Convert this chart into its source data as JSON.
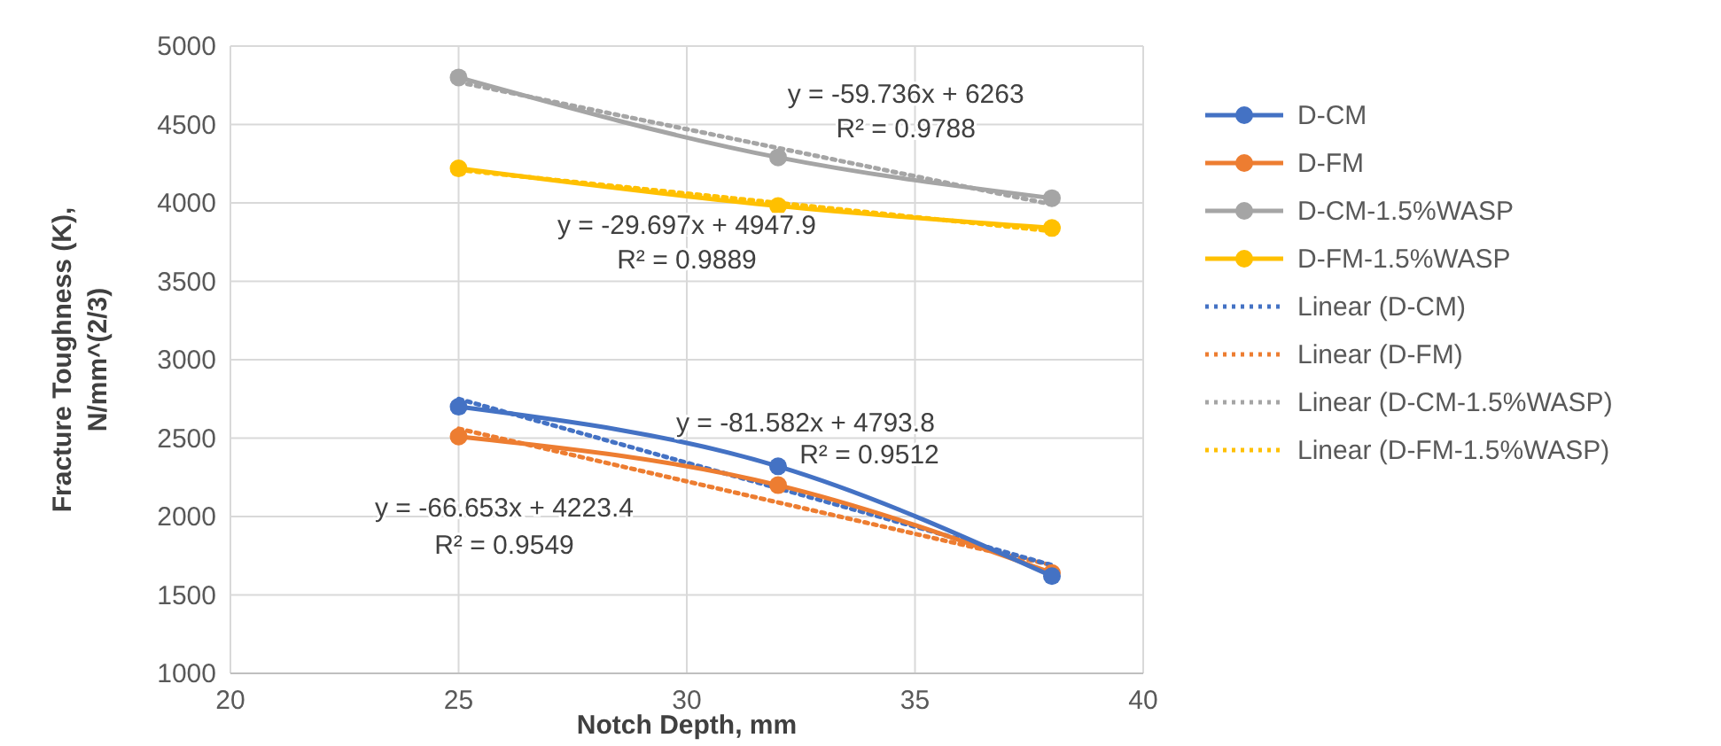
{
  "chart_data": {
    "type": "line",
    "xlabel": "Notch Depth, mm",
    "ylabel": "Fracture Toughness (K), N/mm^(2/3)",
    "x": [
      25,
      32,
      38
    ],
    "xlim": [
      20,
      40
    ],
    "xticks": [
      20,
      25,
      30,
      35,
      40
    ],
    "ylim": [
      1000,
      5000
    ],
    "yticks": [
      1000,
      1500,
      2000,
      2500,
      3000,
      3500,
      4000,
      4500,
      5000
    ],
    "grid": true,
    "legend": "right",
    "marker": "circle",
    "line_style": "solid",
    "series": [
      {
        "name": "D-CM",
        "color": "#4472c4",
        "values": [
          2700,
          2320,
          1620
        ]
      },
      {
        "name": "D-FM",
        "color": "#ed7d31",
        "values": [
          2510,
          2200,
          1640
        ]
      },
      {
        "name": "D-CM-1.5%WASP",
        "color": "#a5a5a5",
        "values": [
          4800,
          4290,
          4030
        ]
      },
      {
        "name": "D-FM-1.5%WASP",
        "color": "#ffc000",
        "values": [
          4220,
          3980,
          3840
        ]
      },
      {
        "name": "Linear (D-CM)",
        "color": "#4472c4",
        "values": [
          2750,
          2180,
          1690
        ],
        "marker": "none",
        "line_style": "dotted"
      },
      {
        "name": "Linear (D-FM)",
        "color": "#ed7d31",
        "values": [
          2560,
          2090,
          1690
        ],
        "marker": "none",
        "line_style": "dotted"
      },
      {
        "name": "Linear (D-CM-1.5%WASP)",
        "color": "#a5a5a5",
        "values": [
          4770,
          4350,
          3990
        ],
        "marker": "none",
        "line_style": "dotted"
      },
      {
        "name": "Linear (D-FM-1.5%WASP)",
        "color": "#ffc000",
        "values": [
          4210,
          4000,
          3820
        ],
        "marker": "none",
        "line_style": "dotted"
      }
    ],
    "annotations": [
      "y = -59.736x + 6263",
      "R² = 0.9788",
      "y = -29.697x + 4947.9",
      "R² = 0.9889",
      "y = -81.582x + 4793.8",
      "R² = 0.9512",
      "y = -66.653x + 4223.4",
      "R² = 0.9549"
    ]
  }
}
